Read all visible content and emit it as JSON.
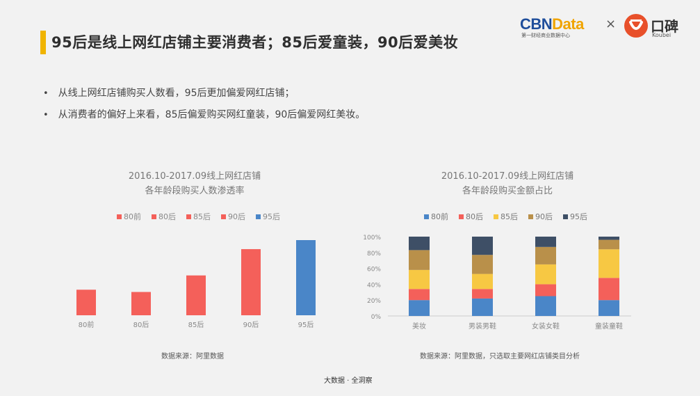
{
  "header": {
    "title": "95后是线上网红店铺主要消费者；85后爱童装，90后爱美妆",
    "accent_color": "#f0b400",
    "logo_left": "CBN",
    "logo_left_accent": "Data",
    "logo_left_sub": "第一财经商业数据中心",
    "logo_separator": "×",
    "logo_right": "口碑",
    "logo_right_sub": "Koubei"
  },
  "bullets": [
    "从线上网红店铺购买人数看，95后更加偏爱网红店铺；",
    "从消费者的偏好上来看，85后偏爱购买网红童装，90后偏爱网红美妆。"
  ],
  "chart_data": [
    {
      "type": "bar",
      "title": "2016.10-2017.09线上网红店铺",
      "subtitle": "各年龄段购买人数渗透率",
      "legend": [
        "80前",
        "80后",
        "85后",
        "90后",
        "95后"
      ],
      "legend_placement": "top",
      "categories": [
        "80前",
        "80后",
        "85后",
        "90后",
        "95后"
      ],
      "values": [
        0.34,
        0.31,
        0.53,
        0.88,
        1.0
      ],
      "colors": [
        "#f4605a",
        "#f4605a",
        "#f4605a",
        "#f4605a",
        "#4a86c8"
      ],
      "ylim": [
        0,
        1
      ],
      "grid": false,
      "source": "数据来源：阿里数据"
    },
    {
      "type": "bar",
      "stacked": true,
      "title": "2016.10-2017.09线上网红店铺",
      "subtitle": "各年龄段购买金额占比",
      "legend_placement": "top",
      "categories": [
        "美妆",
        "男装男鞋",
        "女装女鞋",
        "童装童鞋"
      ],
      "series": [
        {
          "name": "80前",
          "color": "#4a86c8",
          "values": [
            20,
            22,
            25,
            20
          ]
        },
        {
          "name": "80后",
          "color": "#f4605a",
          "values": [
            14,
            12,
            15,
            28
          ]
        },
        {
          "name": "85后",
          "color": "#f7c843",
          "values": [
            24,
            19,
            25,
            36
          ]
        },
        {
          "name": "90后",
          "color": "#b9904a",
          "values": [
            25,
            24,
            22,
            12
          ]
        },
        {
          "name": "95后",
          "color": "#3e4f66",
          "values": [
            17,
            23,
            13,
            4
          ]
        }
      ],
      "yticks": [
        "0%",
        "20%",
        "40%",
        "60%",
        "80%",
        "100%"
      ],
      "ylim": [
        0,
        100
      ],
      "grid": false,
      "source": "数据来源：阿里数据，只选取主要网红店铺类目分析"
    }
  ],
  "footer": "大数据 · 全洞察"
}
